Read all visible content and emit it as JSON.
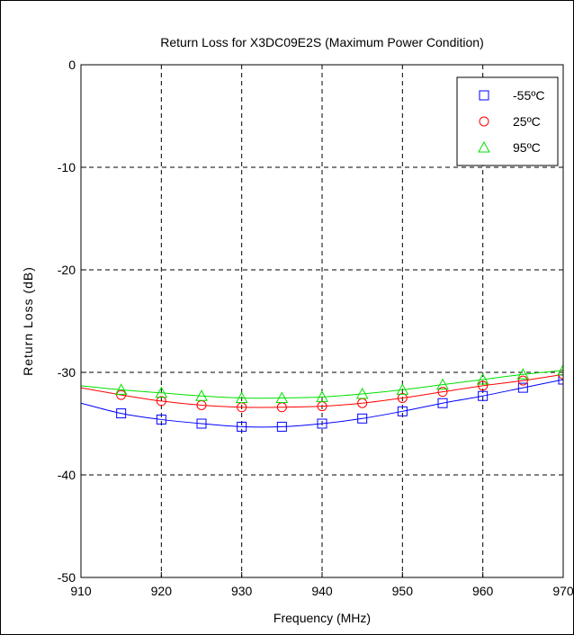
{
  "chart_data": {
    "type": "line",
    "title": "Return Loss for X3DC09E2S (Maximum Power Condition)",
    "xlabel": "Frequency (MHz)",
    "ylabel": "Return Loss (dB)",
    "xlim": [
      910,
      970
    ],
    "ylim": [
      -50,
      0
    ],
    "xticks": [
      910,
      920,
      930,
      940,
      950,
      960,
      970
    ],
    "yticks": [
      0,
      -10,
      -20,
      -30,
      -40,
      -50
    ],
    "grid": true,
    "legend_position": "top-right",
    "series": [
      {
        "name": "-55ºC",
        "color": "#0000ff",
        "marker": "square",
        "x": [
          910,
          915,
          920,
          925,
          930,
          935,
          940,
          945,
          950,
          955,
          960,
          965,
          970
        ],
        "values": [
          -33.0,
          -34.0,
          -34.6,
          -35.0,
          -35.3,
          -35.3,
          -35.0,
          -34.5,
          -33.8,
          -33.0,
          -32.3,
          -31.5,
          -30.7
        ]
      },
      {
        "name": "25ºC",
        "color": "#ff0000",
        "marker": "circle",
        "x": [
          910,
          915,
          920,
          925,
          930,
          935,
          940,
          945,
          950,
          955,
          960,
          965,
          970
        ],
        "values": [
          -31.5,
          -32.2,
          -32.8,
          -33.2,
          -33.4,
          -33.4,
          -33.3,
          -33.0,
          -32.5,
          -31.9,
          -31.3,
          -30.8,
          -30.2
        ]
      },
      {
        "name": "95ºC",
        "color": "#00e000",
        "marker": "triangle",
        "x": [
          910,
          915,
          920,
          925,
          930,
          935,
          940,
          945,
          950,
          955,
          960,
          965,
          970
        ],
        "values": [
          -31.3,
          -31.7,
          -32.0,
          -32.3,
          -32.5,
          -32.5,
          -32.4,
          -32.1,
          -31.7,
          -31.2,
          -30.7,
          -30.2,
          -29.8
        ]
      }
    ]
  }
}
